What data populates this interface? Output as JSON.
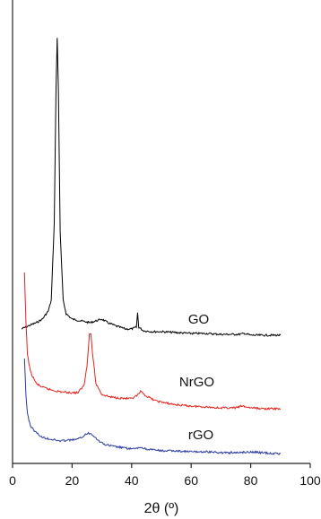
{
  "chart_data": {
    "type": "line",
    "xlabel": "2θ (º)",
    "ylabel": "",
    "xlim": [
      0,
      100
    ],
    "xticks": [
      0,
      20,
      40,
      60,
      80,
      100
    ],
    "grid": false,
    "series": [
      {
        "name": "GO",
        "color": "#000000",
        "points": [
          [
            3,
            367
          ],
          [
            5,
            364
          ],
          [
            8,
            360
          ],
          [
            10,
            356
          ],
          [
            12,
            347
          ],
          [
            13,
            335
          ],
          [
            14,
            250
          ],
          [
            14.6,
            100
          ],
          [
            15,
            42
          ],
          [
            15.4,
            100
          ],
          [
            16,
            260
          ],
          [
            17,
            335
          ],
          [
            18,
            350
          ],
          [
            20,
            356
          ],
          [
            23,
            358
          ],
          [
            26,
            360
          ],
          [
            28,
            358
          ],
          [
            30,
            356
          ],
          [
            32,
            360
          ],
          [
            35,
            364
          ],
          [
            38,
            367
          ],
          [
            40,
            367
          ],
          [
            41.6,
            365
          ],
          [
            42,
            349
          ],
          [
            42.4,
            365
          ],
          [
            44,
            369
          ],
          [
            47,
            370
          ],
          [
            50,
            370
          ],
          [
            55,
            371
          ],
          [
            60,
            372
          ],
          [
            65,
            372
          ],
          [
            70,
            373
          ],
          [
            76,
            373
          ],
          [
            78,
            372
          ],
          [
            80,
            374
          ],
          [
            85,
            374
          ],
          [
            90,
            374
          ]
        ]
      },
      {
        "name": "NrGO",
        "color": "#e8221b",
        "points": [
          [
            4,
            305
          ],
          [
            4.5,
            360
          ],
          [
            5,
            395
          ],
          [
            6,
            415
          ],
          [
            8,
            428
          ],
          [
            10,
            432
          ],
          [
            13,
            435
          ],
          [
            16,
            437
          ],
          [
            19,
            438
          ],
          [
            22,
            438
          ],
          [
            24,
            430
          ],
          [
            25,
            408
          ],
          [
            25.8,
            373
          ],
          [
            26.3,
            372
          ],
          [
            26.8,
            392
          ],
          [
            28,
            428
          ],
          [
            30,
            440
          ],
          [
            33,
            443
          ],
          [
            36,
            444
          ],
          [
            40,
            445
          ],
          [
            42,
            441
          ],
          [
            43,
            437
          ],
          [
            45,
            442
          ],
          [
            48,
            447
          ],
          [
            52,
            450
          ],
          [
            56,
            452
          ],
          [
            60,
            453
          ],
          [
            65,
            454
          ],
          [
            70,
            455
          ],
          [
            75,
            455
          ],
          [
            77,
            453
          ],
          [
            80,
            455
          ],
          [
            85,
            456
          ],
          [
            90,
            456
          ]
        ]
      },
      {
        "name": "rGO",
        "color": "#2a3aa0",
        "points": [
          [
            4,
            400
          ],
          [
            4.5,
            440
          ],
          [
            5,
            462
          ],
          [
            6,
            475
          ],
          [
            8,
            483
          ],
          [
            10,
            488
          ],
          [
            13,
            490
          ],
          [
            16,
            492
          ],
          [
            19,
            491
          ],
          [
            22,
            490
          ],
          [
            24,
            486
          ],
          [
            25.5,
            483
          ],
          [
            27,
            485
          ],
          [
            29,
            492
          ],
          [
            31,
            496
          ],
          [
            34,
            498
          ],
          [
            38,
            500
          ],
          [
            41,
            501
          ],
          [
            43,
            499
          ],
          [
            45,
            501
          ],
          [
            50,
            503
          ],
          [
            55,
            503
          ],
          [
            60,
            504
          ],
          [
            65,
            504
          ],
          [
            70,
            505
          ],
          [
            75,
            505
          ],
          [
            80,
            504
          ],
          [
            84,
            505
          ],
          [
            88,
            506
          ],
          [
            90,
            506
          ]
        ]
      }
    ],
    "annotations": [
      {
        "text": "GO",
        "x": 59,
        "y": 356
      },
      {
        "text": "NrGO",
        "x": 56,
        "y": 426
      },
      {
        "text": "rGO",
        "x": 59,
        "y": 485
      }
    ]
  }
}
